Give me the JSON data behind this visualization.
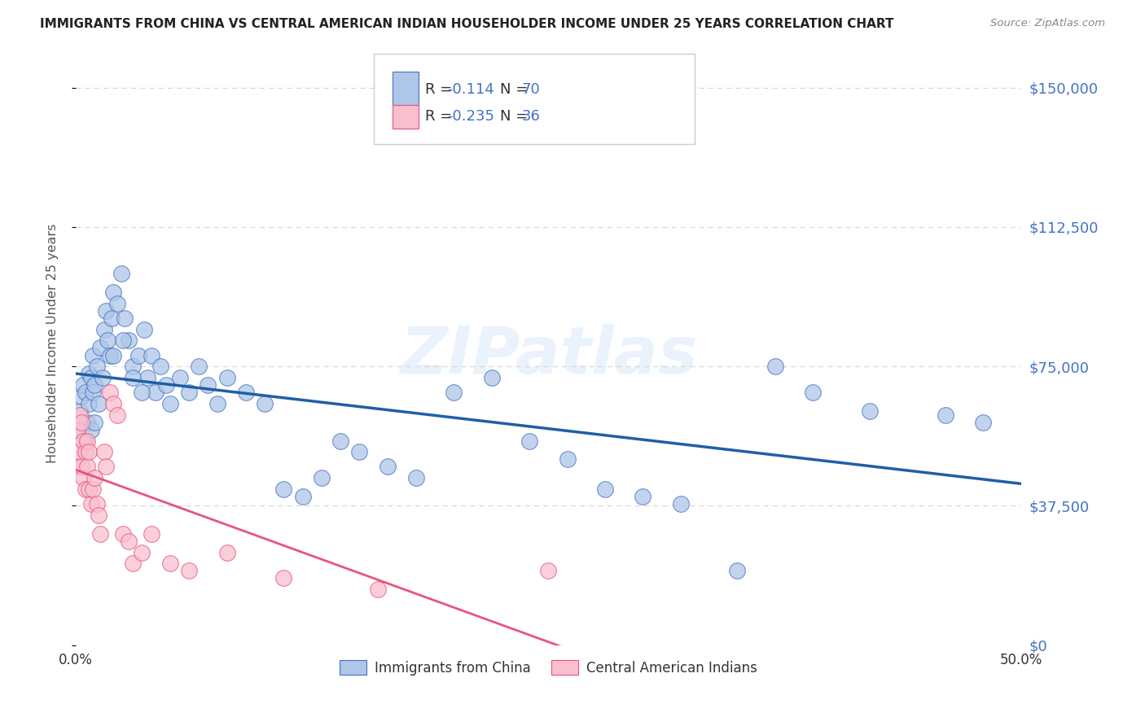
{
  "title": "IMMIGRANTS FROM CHINA VS CENTRAL AMERICAN INDIAN HOUSEHOLDER INCOME UNDER 25 YEARS CORRELATION CHART",
  "source": "Source: ZipAtlas.com",
  "ylabel": "Householder Income Under 25 years",
  "xlim": [
    0.0,
    0.5
  ],
  "ylim": [
    0,
    162500
  ],
  "yticks": [
    0,
    37500,
    75000,
    112500,
    150000
  ],
  "ytick_labels": [
    "",
    "",
    "",
    "",
    ""
  ],
  "ytick_labels_right": [
    "$0",
    "$37,500",
    "$75,000",
    "$112,500",
    "$150,000"
  ],
  "xtick_labels_shown": [
    "0.0%",
    "50.0%"
  ],
  "xtick_positions": [
    0.0,
    0.1,
    0.2,
    0.3,
    0.4,
    0.5
  ],
  "china_color": "#aec6e8",
  "china_edge_color": "#4472c4",
  "camind_color": "#f9bfcf",
  "camind_edge_color": "#e8547a",
  "china_line_color": "#1f5fa6",
  "camind_line_color": "#e8547a",
  "R_china": -0.114,
  "N_china": 70,
  "R_camind": -0.235,
  "N_camind": 36,
  "background_color": "#ffffff",
  "grid_color": "#d8d8d8",
  "title_color": "#222222",
  "ylabel_color": "#555555",
  "ytick_color": "#4472c4",
  "legend_label_china": "Immigrants from China",
  "legend_label_camind": "Central American Indians",
  "watermark": "ZIPatlas",
  "china_x": [
    0.001,
    0.002,
    0.003,
    0.004,
    0.005,
    0.005,
    0.006,
    0.007,
    0.007,
    0.008,
    0.008,
    0.009,
    0.009,
    0.01,
    0.01,
    0.011,
    0.012,
    0.013,
    0.014,
    0.015,
    0.016,
    0.017,
    0.018,
    0.019,
    0.02,
    0.022,
    0.024,
    0.026,
    0.028,
    0.03,
    0.033,
    0.036,
    0.038,
    0.04,
    0.042,
    0.045,
    0.048,
    0.05,
    0.055,
    0.06,
    0.065,
    0.07,
    0.075,
    0.08,
    0.09,
    0.1,
    0.11,
    0.12,
    0.13,
    0.14,
    0.15,
    0.165,
    0.18,
    0.2,
    0.22,
    0.24,
    0.26,
    0.28,
    0.3,
    0.32,
    0.35,
    0.37,
    0.39,
    0.42,
    0.46,
    0.48,
    0.02,
    0.025,
    0.03,
    0.035
  ],
  "china_y": [
    58000,
    63000,
    67000,
    70000,
    68000,
    55000,
    60000,
    73000,
    65000,
    72000,
    58000,
    68000,
    78000,
    70000,
    60000,
    75000,
    65000,
    80000,
    72000,
    85000,
    90000,
    82000,
    78000,
    88000,
    95000,
    92000,
    100000,
    88000,
    82000,
    75000,
    78000,
    85000,
    72000,
    78000,
    68000,
    75000,
    70000,
    65000,
    72000,
    68000,
    75000,
    70000,
    65000,
    72000,
    68000,
    65000,
    42000,
    40000,
    45000,
    55000,
    52000,
    48000,
    45000,
    68000,
    72000,
    55000,
    50000,
    42000,
    40000,
    38000,
    20000,
    75000,
    68000,
    63000,
    62000,
    60000,
    78000,
    82000,
    72000,
    68000
  ],
  "camind_x": [
    0.001,
    0.001,
    0.002,
    0.002,
    0.003,
    0.003,
    0.004,
    0.004,
    0.005,
    0.005,
    0.006,
    0.006,
    0.007,
    0.007,
    0.008,
    0.009,
    0.01,
    0.011,
    0.012,
    0.013,
    0.015,
    0.016,
    0.018,
    0.02,
    0.022,
    0.025,
    0.028,
    0.03,
    0.035,
    0.04,
    0.05,
    0.06,
    0.08,
    0.11,
    0.16,
    0.25
  ],
  "camind_y": [
    58000,
    50000,
    62000,
    52000,
    60000,
    48000,
    55000,
    45000,
    52000,
    42000,
    55000,
    48000,
    52000,
    42000,
    38000,
    42000,
    45000,
    38000,
    35000,
    30000,
    52000,
    48000,
    68000,
    65000,
    62000,
    30000,
    28000,
    22000,
    25000,
    30000,
    22000,
    20000,
    25000,
    18000,
    15000,
    20000
  ]
}
